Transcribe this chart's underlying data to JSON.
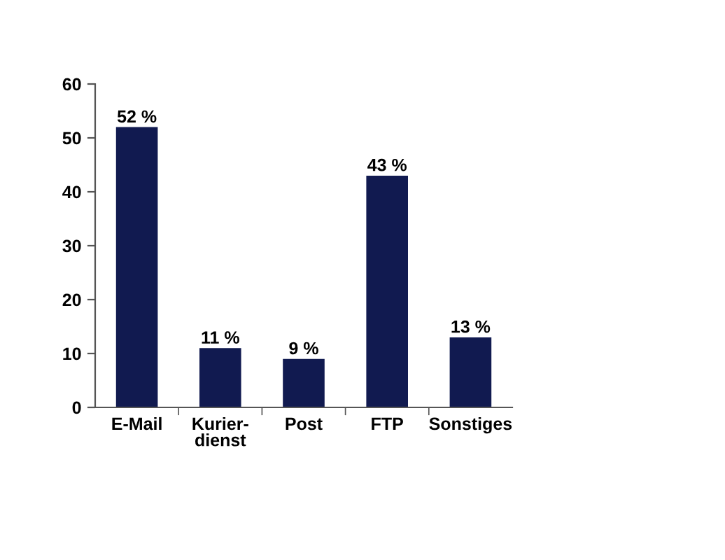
{
  "chart_data": {
    "type": "bar",
    "categories": [
      "E-Mail",
      "Kurier-\ndienst",
      "Post",
      "FTP",
      "Sonstiges"
    ],
    "values": [
      52,
      11,
      9,
      43,
      13
    ],
    "value_labels": [
      "52 %",
      "11 %",
      "9 %",
      "43 %",
      "13 %"
    ],
    "color": "#111a50",
    "ylim": [
      0,
      60
    ],
    "yticks": [
      0,
      10,
      20,
      30,
      40,
      50,
      60
    ],
    "grid": false,
    "legend": false
  }
}
